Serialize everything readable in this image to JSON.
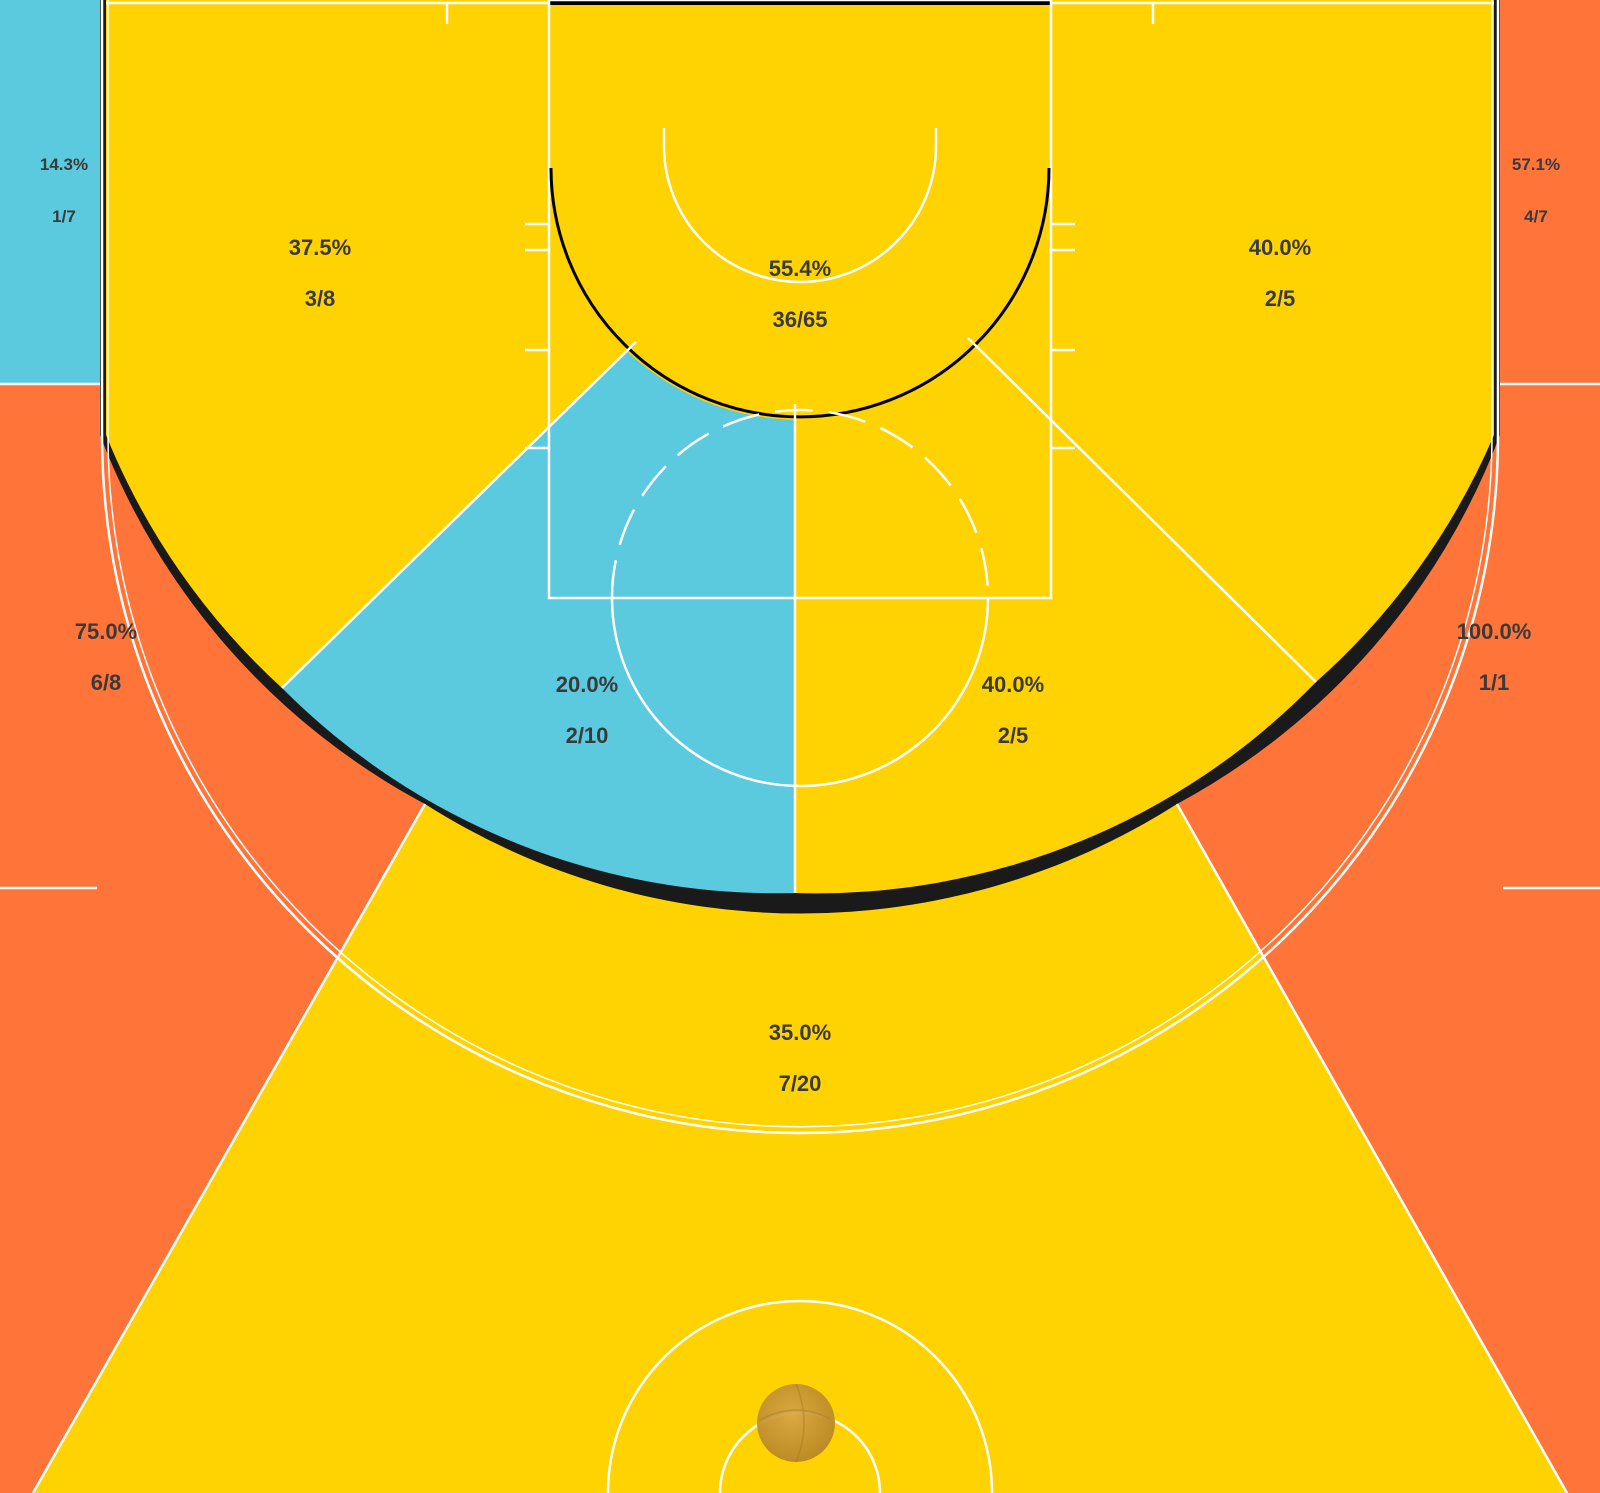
{
  "chart_data": {
    "type": "heatmap",
    "colors": {
      "hot": "#FF7439",
      "average": "#FFD302",
      "cold": "#5BC9DE",
      "lines": "#FFFFFF",
      "text": "#3A3A3A",
      "ball": "#C8952F"
    },
    "zones": [
      {
        "id": "left-corner-three",
        "pct": "14.3%",
        "made_attempted": "1/7",
        "made": 1,
        "attempted": 7,
        "color": "cold"
      },
      {
        "id": "right-corner-three",
        "pct": "57.1%",
        "made_attempted": "4/7",
        "made": 4,
        "attempted": 7,
        "color": "hot"
      },
      {
        "id": "left-baseline-mid",
        "pct": "37.5%",
        "made_attempted": "3/8",
        "made": 3,
        "attempted": 8,
        "color": "average"
      },
      {
        "id": "right-baseline-mid",
        "pct": "40.0%",
        "made_attempted": "2/5",
        "made": 2,
        "attempted": 5,
        "color": "average"
      },
      {
        "id": "restricted-area",
        "pct": "55.4%",
        "made_attempted": "36/65",
        "made": 36,
        "attempted": 65,
        "color": "average"
      },
      {
        "id": "left-wing-three",
        "pct": "75.0%",
        "made_attempted": "6/8",
        "made": 6,
        "attempted": 8,
        "color": "hot"
      },
      {
        "id": "right-wing-three",
        "pct": "100.0%",
        "made_attempted": "1/1",
        "made": 1,
        "attempted": 1,
        "color": "hot"
      },
      {
        "id": "left-elbow-mid",
        "pct": "20.0%",
        "made_attempted": "2/10",
        "made": 2,
        "attempted": 10,
        "color": "cold"
      },
      {
        "id": "right-elbow-mid",
        "pct": "40.0%",
        "made_attempted": "2/5",
        "made": 2,
        "attempted": 5,
        "color": "average"
      },
      {
        "id": "top-of-key-three",
        "pct": "35.0%",
        "made_attempted": "7/20",
        "made": 7,
        "attempted": 20,
        "color": "average"
      }
    ]
  }
}
